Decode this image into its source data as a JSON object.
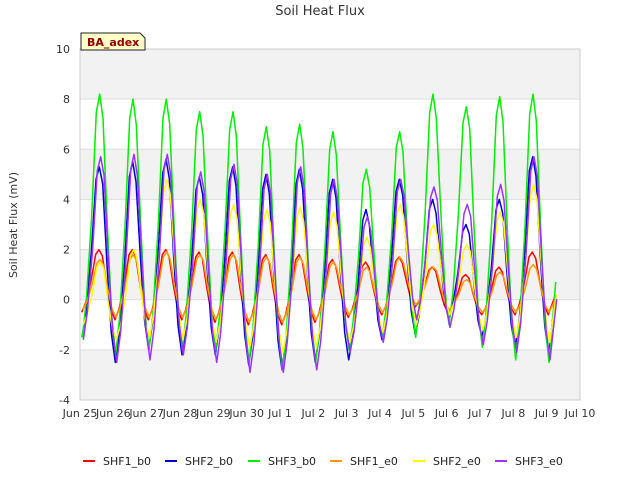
{
  "chart_data": {
    "type": "line",
    "title": "Soil Heat Flux",
    "xlabel": "",
    "ylabel": "Soil Heat Flux (mV)",
    "ylim": [
      -4,
      10
    ],
    "yticks": [
      -4,
      -2,
      0,
      2,
      4,
      6,
      8,
      10
    ],
    "xlim": [
      0,
      15
    ],
    "xticks": [
      {
        "x": 0,
        "label": "Jun 25"
      },
      {
        "x": 1,
        "label": "Jun 26"
      },
      {
        "x": 2,
        "label": "Jun 27"
      },
      {
        "x": 3,
        "label": "Jun 28"
      },
      {
        "x": 4,
        "label": "Jun 29"
      },
      {
        "x": 5,
        "label": "Jun 30"
      },
      {
        "x": 6,
        "label": "Jul 1"
      },
      {
        "x": 7,
        "label": "Jul 2"
      },
      {
        "x": 8,
        "label": "Jul 3"
      },
      {
        "x": 9,
        "label": "Jul 4"
      },
      {
        "x": 10,
        "label": "Jul 5"
      },
      {
        "x": 11,
        "label": "Jul 6"
      },
      {
        "x": 12,
        "label": "Jul 7"
      },
      {
        "x": 13,
        "label": "Jul 8"
      },
      {
        "x": 14,
        "label": "Jul 9"
      },
      {
        "x": 15,
        "label": "Jul 10"
      }
    ],
    "grid": true,
    "legend_position": "bottom",
    "badge": "BA_adex",
    "days": [
      "Jun 25",
      "Jun 26",
      "Jun 27",
      "Jun 28",
      "Jun 29",
      "Jun 30",
      "Jul 1",
      "Jul 2",
      "Jul 3",
      "Jul 4",
      "Jul 5",
      "Jul 6",
      "Jul 7",
      "Jul 8",
      "Jul 9"
    ],
    "series": [
      {
        "name": "SHF1_b0",
        "color": "#ff0000",
        "peaks": [
          2.0,
          2.0,
          2.0,
          1.9,
          1.9,
          1.8,
          1.8,
          1.6,
          1.5,
          1.7,
          1.3,
          1.0,
          1.3,
          1.9
        ],
        "troughs": [
          -0.5,
          -0.8,
          -0.8,
          -0.8,
          -0.9,
          -1.0,
          -1.0,
          -0.9,
          -0.7,
          -0.6,
          -0.3,
          -0.5,
          -0.6,
          -0.6,
          -0.6
        ]
      },
      {
        "name": "SHF2_b0",
        "color": "#0000cc",
        "peaks": [
          5.3,
          5.5,
          5.6,
          4.9,
          5.3,
          5.0,
          5.2,
          4.8,
          3.6,
          4.8,
          4.0,
          3.0,
          4.0,
          5.7
        ],
        "troughs": [
          -1.5,
          -2.5,
          -2.0,
          -2.2,
          -2.2,
          -2.6,
          -2.8,
          -2.5,
          -2.4,
          -1.6,
          -1.4,
          -0.8,
          -1.5,
          -1.9,
          -2.2
        ]
      },
      {
        "name": "SHF3_b0",
        "color": "#00ee00",
        "peaks": [
          8.2,
          8.0,
          8.0,
          7.5,
          7.5,
          6.9,
          7.0,
          6.7,
          5.2,
          6.7,
          8.2,
          7.7,
          8.1,
          8.2
        ],
        "troughs": [
          -1.5,
          -2.2,
          -2.0,
          -2.0,
          -2.0,
          -2.5,
          -2.8,
          -2.5,
          -2.0,
          -1.5,
          -1.5,
          -1.0,
          -1.9,
          -2.4,
          -2.5
        ]
      },
      {
        "name": "SHF1_e0",
        "color": "#ff9900",
        "peaks": [
          1.6,
          1.8,
          1.9,
          1.8,
          1.8,
          1.7,
          1.7,
          1.5,
          1.3,
          1.7,
          1.3,
          0.8,
          1.1,
          1.4
        ],
        "troughs": [
          -0.4,
          -0.7,
          -0.7,
          -0.7,
          -0.8,
          -0.9,
          -0.9,
          -0.8,
          -0.6,
          -0.5,
          -0.2,
          -0.4,
          -0.5,
          -0.5,
          -0.5
        ]
      },
      {
        "name": "SHF2_e0",
        "color": "#ffff00",
        "peaks": [
          1.5,
          2.0,
          4.8,
          4.0,
          3.8,
          3.6,
          3.7,
          3.5,
          2.5,
          3.8,
          3.0,
          2.2,
          3.5,
          4.6
        ],
        "troughs": [
          -1.0,
          -1.6,
          -1.5,
          -1.6,
          -1.7,
          -1.9,
          -2.1,
          -1.9,
          -1.7,
          -1.3,
          -1.0,
          -0.6,
          -1.2,
          -1.5,
          -1.7
        ]
      },
      {
        "name": "SHF3_e0",
        "color": "#9933ff",
        "peaks": [
          5.7,
          5.8,
          5.8,
          5.1,
          5.4,
          5.0,
          5.3,
          4.8,
          3.3,
          4.8,
          4.5,
          3.8,
          4.6,
          5.7
        ],
        "troughs": [
          -1.6,
          -2.5,
          -2.4,
          -2.2,
          -2.5,
          -2.9,
          -2.9,
          -2.8,
          -2.1,
          -1.7,
          -0.8,
          -1.1,
          -1.8,
          -2.1,
          -2.4
        ]
      }
    ]
  }
}
